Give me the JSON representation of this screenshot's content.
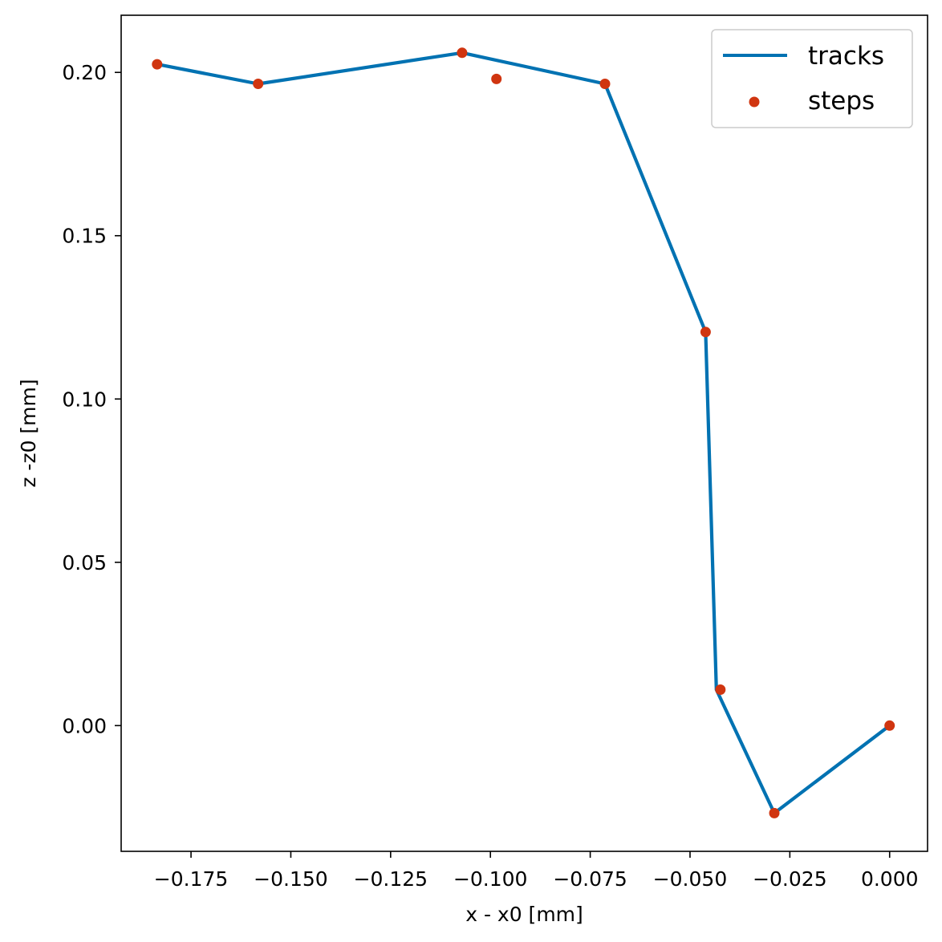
{
  "chart_data": {
    "type": "line",
    "title": "",
    "xlabel": "x - x0 [mm]",
    "ylabel": "z -z0 [mm]",
    "xlim": [
      -0.1925,
      0.0095
    ],
    "ylim": [
      -0.0385,
      0.2175
    ],
    "xticks": [
      -0.175,
      -0.15,
      -0.125,
      -0.1,
      -0.075,
      -0.05,
      -0.025,
      0.0
    ],
    "xtick_labels": [
      "−0.175",
      "−0.150",
      "−0.125",
      "−0.100",
      "−0.075",
      "−0.050",
      "−0.025",
      "0.000"
    ],
    "yticks": [
      0.0,
      0.05,
      0.1,
      0.15,
      0.2
    ],
    "ytick_labels": [
      "0.00",
      "0.05",
      "0.10",
      "0.15",
      "0.20"
    ],
    "grid": false,
    "legend_position": "top-right",
    "series": [
      {
        "name": "tracks",
        "kind": "line",
        "color": "#0072b2",
        "x": [
          -0.1835,
          -0.1582,
          -0.1071,
          -0.0713,
          -0.0461,
          -0.0434,
          -0.0289,
          0.0
        ],
        "y": [
          0.2025,
          0.1965,
          0.206,
          0.1965,
          0.1205,
          0.011,
          -0.0268,
          0.0
        ]
      },
      {
        "name": "steps",
        "kind": "scatter",
        "color": "#d03510",
        "x": [
          -0.1835,
          -0.1582,
          -0.1071,
          -0.0985,
          -0.0713,
          -0.0461,
          -0.0424,
          -0.0289,
          0.0
        ],
        "y": [
          0.2025,
          0.1965,
          0.206,
          0.198,
          0.1965,
          0.1205,
          0.011,
          -0.0268,
          0.0
        ]
      }
    ]
  }
}
